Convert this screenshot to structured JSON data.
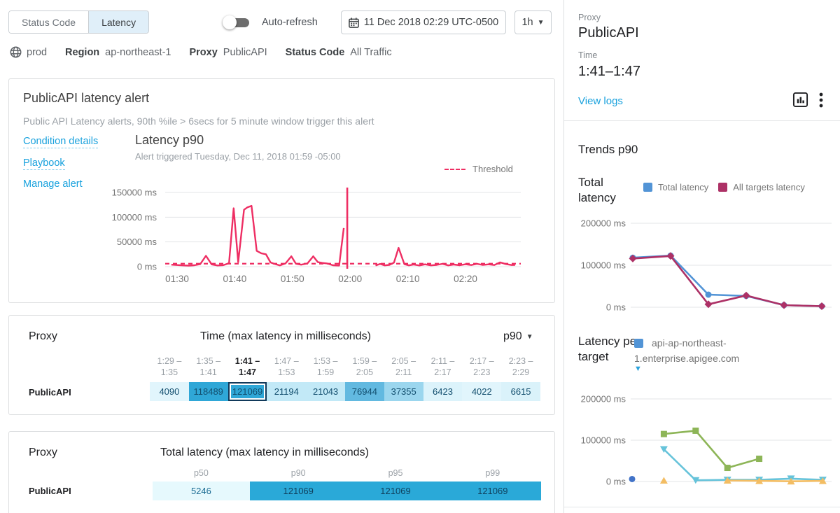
{
  "topbar": {
    "tabs": [
      {
        "label": "Status Code",
        "active": false
      },
      {
        "label": "Latency",
        "active": true
      }
    ],
    "auto_refresh_label": "Auto-refresh",
    "date_label": "11 Dec 2018 02:29 UTC-0500",
    "range_label": "1h"
  },
  "breadcrumb": {
    "env": "prod",
    "items": [
      {
        "label": "Region",
        "value": "ap-northeast-1"
      },
      {
        "label": "Proxy",
        "value": "PublicAPI"
      },
      {
        "label": "Status Code",
        "value": "All Traffic"
      }
    ]
  },
  "alert_card": {
    "title": "PublicAPI latency alert",
    "description": "Public API Latency alerts, 90th %ile > 6secs for 5 minute window trigger this alert",
    "links": [
      "Condition details",
      "Playbook",
      "Manage alert"
    ],
    "chart_title": "Latency p90",
    "chart_subtitle": "Alert triggered Tuesday, Dec 11, 2018 01:59 -05:00",
    "threshold_label": "Threshold"
  },
  "time_table": {
    "proxy_header": "Proxy",
    "title": "Time (max latency in milliseconds)",
    "percentile": "p90",
    "row_label": "PublicAPI",
    "columns": [
      {
        "from": "1:29 –",
        "to": "1:35",
        "selected": false
      },
      {
        "from": "1:35 –",
        "to": "1:41",
        "selected": false
      },
      {
        "from": "1:41 –",
        "to": "1:47",
        "selected": true
      },
      {
        "from": "1:47 –",
        "to": "1:53",
        "selected": false
      },
      {
        "from": "1:53 –",
        "to": "1:59",
        "selected": false
      },
      {
        "from": "1:59 –",
        "to": "2:05",
        "selected": false
      },
      {
        "from": "2:05 –",
        "to": "2:11",
        "selected": false
      },
      {
        "from": "2:11 –",
        "to": "2:17",
        "selected": false
      },
      {
        "from": "2:17 –",
        "to": "2:23",
        "selected": false
      },
      {
        "from": "2:23 –",
        "to": "2:29",
        "selected": false
      }
    ],
    "cells": [
      {
        "value": "4090",
        "bg": "#e1f5fc",
        "selected": false
      },
      {
        "value": "118489",
        "bg": "#2fa7d7",
        "selected": false
      },
      {
        "value": "121069",
        "bg": "#2fa7d7",
        "selected": true
      },
      {
        "value": "21194",
        "bg": "#c2e9f7",
        "selected": false
      },
      {
        "value": "21043",
        "bg": "#c2e9f7",
        "selected": false
      },
      {
        "value": "76944",
        "bg": "#62b9e0",
        "selected": false
      },
      {
        "value": "37355",
        "bg": "#9bd6ee",
        "selected": false
      },
      {
        "value": "6423",
        "bg": "#dcf3fb",
        "selected": false
      },
      {
        "value": "4022",
        "bg": "#e1f5fc",
        "selected": false
      },
      {
        "value": "6615",
        "bg": "#daf2fa",
        "selected": false
      }
    ]
  },
  "total_table": {
    "proxy_header": "Proxy",
    "title": "Total latency (max latency in milliseconds)",
    "row_label": "PublicAPI",
    "columns": [
      "p50",
      "p90",
      "p95",
      "p99"
    ],
    "cells": [
      {
        "value": "5246",
        "bg": "#e6f9fd",
        "fg": "#1d6d94"
      },
      {
        "value": "121069",
        "bg": "#2aa9d8",
        "fg": "#0f3f5c"
      },
      {
        "value": "121069",
        "bg": "#2aa9d8",
        "fg": "#0f3f5c"
      },
      {
        "value": "121069",
        "bg": "#2aa9d8",
        "fg": "#0f3f5c"
      }
    ]
  },
  "sidebar": {
    "proxy_label": "Proxy",
    "proxy_value": "PublicAPI",
    "time_label": "Time",
    "time_value": "1:41–1:47",
    "view_logs": "View logs",
    "trends_title": "Trends p90",
    "total_latency_label": "Total latency",
    "legend": [
      {
        "label": "Total latency",
        "color": "#5294d6"
      },
      {
        "label": "All targets latency",
        "color": "#ad3166"
      }
    ],
    "latency_per_target_label": "Latency per target",
    "target_legend": "api-ap-northeast-1.enterprise.apigee.com",
    "target_legend_color": "#5294d6"
  },
  "chart_data": [
    {
      "type": "line",
      "name": "latency-p90",
      "title": "Latency p90",
      "color": "#ee2e63",
      "threshold": 6000,
      "ylim": [
        0,
        150000
      ],
      "yticks": [
        {
          "v": 150000,
          "label": "150000 ms"
        },
        {
          "v": 100000,
          "label": "100000 ms"
        },
        {
          "v": 50000,
          "label": "50000 ms"
        },
        {
          "v": 0,
          "label": "0 ms"
        }
      ],
      "xticks": [
        {
          "t": 90,
          "label": "01:30"
        },
        {
          "t": 100,
          "label": "01:40"
        },
        {
          "t": 110,
          "label": "01:50"
        },
        {
          "t": 120,
          "label": "02:00"
        },
        {
          "t": 130,
          "label": "02:10"
        },
        {
          "t": 140,
          "label": "02:20"
        }
      ],
      "spike": {
        "t": 119.5,
        "v": 160000
      },
      "segments": [
        [
          [
            89,
            4000
          ],
          [
            90,
            3200
          ],
          [
            91,
            2600
          ],
          [
            92,
            2100
          ],
          [
            93,
            2800
          ],
          [
            94,
            5000
          ],
          [
            95,
            22000
          ],
          [
            96,
            4500
          ],
          [
            97,
            2400
          ],
          [
            98,
            3000
          ],
          [
            99,
            7000
          ],
          [
            99.8,
            118000
          ],
          [
            100.6,
            9000
          ],
          [
            101.6,
            115000
          ],
          [
            102.2,
            120000
          ],
          [
            102.9,
            123000
          ],
          [
            103.8,
            32000
          ],
          [
            104.6,
            27000
          ],
          [
            105.4,
            25000
          ],
          [
            106.2,
            8500
          ],
          [
            106.9,
            5500
          ],
          [
            107.8,
            2500
          ],
          [
            108.8,
            6500
          ],
          [
            109.8,
            21000
          ],
          [
            110.6,
            6000
          ],
          [
            111.5,
            4000
          ],
          [
            112.6,
            6500
          ],
          [
            113.6,
            21000
          ],
          [
            114.4,
            9000
          ],
          [
            115.2,
            7500
          ],
          [
            116,
            6500
          ],
          [
            117,
            2800
          ],
          [
            118.1,
            2200
          ],
          [
            118.9,
            78000
          ]
        ],
        [
          [
            124.4,
            2200
          ],
          [
            125.2,
            5500
          ],
          [
            126,
            2600
          ],
          [
            126.8,
            3600
          ],
          [
            127.6,
            8000
          ],
          [
            128.4,
            38000
          ],
          [
            129.4,
            5000
          ],
          [
            130.2,
            2600
          ],
          [
            131,
            4200
          ],
          [
            132,
            2400
          ],
          [
            133,
            4600
          ],
          [
            134,
            2600
          ],
          [
            135,
            3600
          ],
          [
            136,
            5600
          ],
          [
            137,
            2600
          ],
          [
            138,
            4200
          ],
          [
            139,
            2800
          ],
          [
            140,
            4800
          ],
          [
            141,
            3200
          ],
          [
            142,
            5600
          ],
          [
            143,
            3400
          ],
          [
            144,
            4600
          ],
          [
            145,
            3200
          ],
          [
            146,
            8600
          ],
          [
            147,
            5200
          ],
          [
            148,
            3200
          ],
          [
            148.6,
            3600
          ]
        ]
      ]
    },
    {
      "type": "line",
      "name": "total-latency-trend",
      "title": "Total latency",
      "ylim": [
        0,
        200000
      ],
      "yticks": [
        {
          "v": 200000,
          "label": "200000 ms"
        },
        {
          "v": 100000,
          "label": "100000 ms"
        },
        {
          "v": 0,
          "label": "0 ms"
        }
      ],
      "series": [
        {
          "name": "Total latency",
          "color": "#5294d6",
          "marker": "circle",
          "values": [
            118000,
            123000,
            30000,
            27000,
            5000,
            2500
          ]
        },
        {
          "name": "All targets latency",
          "color": "#ad3166",
          "marker": "diamond",
          "values": [
            116000,
            122000,
            7000,
            28000,
            5000,
            2500
          ]
        }
      ]
    },
    {
      "type": "line",
      "name": "latency-per-target",
      "title": "Latency per target",
      "ylim": [
        0,
        200000
      ],
      "yticks": [
        {
          "v": 200000,
          "label": "200000 ms"
        },
        {
          "v": 100000,
          "label": "100000 ms"
        },
        {
          "v": 0,
          "label": "0 ms"
        }
      ],
      "series": [
        {
          "name": "target-green",
          "color": "#8db557",
          "marker": "square",
          "values": [
            null,
            115000,
            123000,
            33000,
            55000,
            null,
            null
          ]
        },
        {
          "name": "target-cyan",
          "color": "#66c3da",
          "marker": "triangle-down",
          "values": [
            null,
            78000,
            3000,
            4000,
            4000,
            7000,
            4000
          ]
        },
        {
          "name": "target-amber",
          "color": "#f3bd63",
          "marker": "triangle-up",
          "values": [
            null,
            2500,
            null,
            2500,
            1500,
            500,
            1500
          ]
        },
        {
          "name": "target-blue",
          "color": "#4273c8",
          "marker": "circle",
          "values": [
            6000,
            null,
            null,
            null,
            null,
            null,
            null
          ]
        }
      ]
    }
  ]
}
